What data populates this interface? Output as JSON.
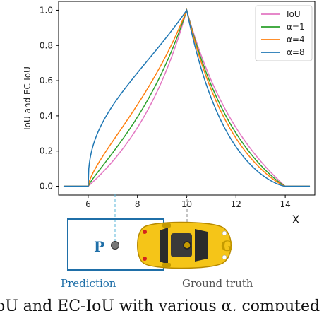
{
  "chart_data": {
    "type": "line",
    "title": "",
    "xlabel": "X",
    "ylabel": "IoU and EC-IoU",
    "xlim": [
      4.8,
      15.2
    ],
    "ylim": [
      -0.05,
      1.05
    ],
    "x_ticks": [
      6,
      8,
      10,
      12,
      14
    ],
    "y_ticks": [
      0.0,
      0.2,
      0.4,
      0.6,
      0.8,
      1.0
    ],
    "x_tick_labels": [
      "6",
      "8",
      "10",
      "12",
      "14"
    ],
    "y_tick_labels": [
      "0.0",
      "0.2",
      "0.4",
      "0.6",
      "0.8",
      "1.0"
    ],
    "legend_position": "top-right",
    "grid": false,
    "series": [
      {
        "name": "IoU",
        "color": "#e377c2",
        "gamma": 1.0
      },
      {
        "name": "α=1",
        "color": "#2ca02c",
        "gamma": 0.85
      },
      {
        "name": "α=4",
        "color": "#ff7f0e",
        "gamma": 0.7
      },
      {
        "name": "α=8",
        "color": "#1f77b4",
        "gamma": 0.4
      }
    ],
    "x_range": [
      5,
      15
    ],
    "box_width": 4,
    "reference_center": 10
  },
  "illustration": {
    "prediction_letter": "P",
    "ground_truth_letter": "G",
    "prediction_label": "Prediction",
    "ground_truth_label": "Ground truth",
    "prediction_color": "#1f6fa8",
    "car_color": "#f5c518"
  },
  "caption": {
    "text": "oU and EC-IoU with various α, computed"
  }
}
